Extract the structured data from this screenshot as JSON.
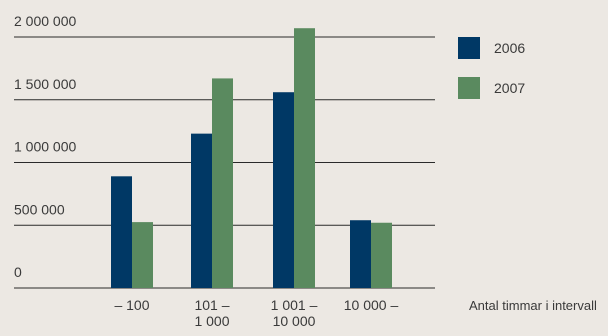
{
  "chart_data": {
    "type": "bar",
    "categories": [
      [
        "– 100"
      ],
      [
        "101 –",
        "1 000"
      ],
      [
        "1 001 –",
        "10 000"
      ],
      [
        "10 000 –"
      ]
    ],
    "series": [
      {
        "name": "2006",
        "color": "#003865",
        "values": [
          890000,
          1230000,
          1560000,
          540000
        ]
      },
      {
        "name": "2007",
        "color": "#5a8a5f",
        "values": [
          525000,
          1670000,
          2070000,
          520000
        ]
      }
    ],
    "yticks": [
      {
        "value": 0,
        "label": "0"
      },
      {
        "value": 500000,
        "label": "500 000"
      },
      {
        "value": 1000000,
        "label": "1 000 000"
      },
      {
        "value": 1500000,
        "label": "1 500 000"
      },
      {
        "value": 2000000,
        "label": "2 000 000"
      }
    ],
    "ylim": [
      0,
      2000000
    ],
    "xlabel": "Antal timmar i intervall",
    "ylabel": "",
    "title": "",
    "grid": true,
    "legend_position": "right"
  },
  "colors": {
    "background": "#ece8e3",
    "gridline": "#2a2a2a",
    "text": "#3a3a3a"
  }
}
